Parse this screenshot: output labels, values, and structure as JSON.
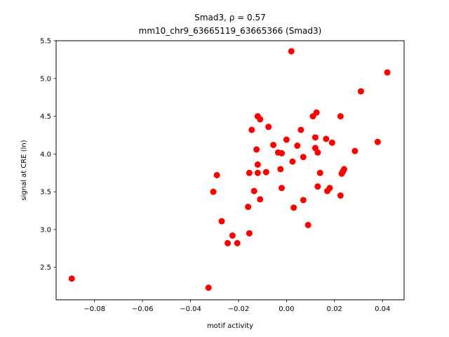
{
  "chart_data": {
    "type": "scatter",
    "title_line1": "Smad3, ρ = 0.57",
    "title_line2": "mm10_chr9_63665119_63665366 (Smad3)",
    "xlabel": "motif activity",
    "ylabel": "signal at CRE (ln)",
    "xlim": [
      -0.096,
      0.049
    ],
    "ylim": [
      2.07,
      5.5
    ],
    "xticks": [
      -0.08,
      -0.06,
      -0.04,
      -0.02,
      0.0,
      0.02,
      0.04
    ],
    "xtick_labels": [
      "−0.08",
      "−0.06",
      "−0.04",
      "−0.02",
      "0.00",
      "0.02",
      "0.04"
    ],
    "yticks": [
      2.5,
      3.0,
      3.5,
      4.0,
      4.5,
      5.0,
      5.5
    ],
    "ytick_labels": [
      "2.5",
      "3.0",
      "3.5",
      "4.0",
      "4.5",
      "5.0",
      "5.5"
    ],
    "marker_color": "#ff0000",
    "grid": false,
    "points": [
      {
        "x": -0.0895,
        "y": 2.35
      },
      {
        "x": -0.0325,
        "y": 2.23
      },
      {
        "x": -0.0305,
        "y": 3.5
      },
      {
        "x": -0.029,
        "y": 3.72
      },
      {
        "x": -0.027,
        "y": 3.11
      },
      {
        "x": -0.0245,
        "y": 2.82
      },
      {
        "x": -0.0225,
        "y": 2.92
      },
      {
        "x": -0.0205,
        "y": 2.82
      },
      {
        "x": -0.016,
        "y": 3.3
      },
      {
        "x": -0.0155,
        "y": 3.75
      },
      {
        "x": -0.0155,
        "y": 2.95
      },
      {
        "x": -0.0145,
        "y": 4.32
      },
      {
        "x": -0.0135,
        "y": 3.51
      },
      {
        "x": -0.0125,
        "y": 4.06
      },
      {
        "x": -0.012,
        "y": 3.86
      },
      {
        "x": -0.012,
        "y": 3.75
      },
      {
        "x": -0.012,
        "y": 4.5
      },
      {
        "x": -0.011,
        "y": 4.46
      },
      {
        "x": -0.011,
        "y": 3.4
      },
      {
        "x": -0.0085,
        "y": 3.76
      },
      {
        "x": -0.0075,
        "y": 4.36
      },
      {
        "x": -0.0055,
        "y": 4.12
      },
      {
        "x": -0.0035,
        "y": 4.02
      },
      {
        "x": -0.0025,
        "y": 3.8
      },
      {
        "x": -0.002,
        "y": 4.01
      },
      {
        "x": -0.002,
        "y": 3.55
      },
      {
        "x": 0.0,
        "y": 4.19
      },
      {
        "x": 0.002,
        "y": 5.36
      },
      {
        "x": 0.0025,
        "y": 3.9
      },
      {
        "x": 0.003,
        "y": 3.29
      },
      {
        "x": 0.0045,
        "y": 4.11
      },
      {
        "x": 0.006,
        "y": 4.32
      },
      {
        "x": 0.007,
        "y": 3.96
      },
      {
        "x": 0.007,
        "y": 3.39
      },
      {
        "x": 0.009,
        "y": 3.06
      },
      {
        "x": 0.011,
        "y": 4.5
      },
      {
        "x": 0.012,
        "y": 4.22
      },
      {
        "x": 0.012,
        "y": 4.08
      },
      {
        "x": 0.0125,
        "y": 4.55
      },
      {
        "x": 0.013,
        "y": 4.02
      },
      {
        "x": 0.013,
        "y": 3.57
      },
      {
        "x": 0.014,
        "y": 3.75
      },
      {
        "x": 0.0165,
        "y": 4.2
      },
      {
        "x": 0.017,
        "y": 3.51
      },
      {
        "x": 0.018,
        "y": 3.55
      },
      {
        "x": 0.019,
        "y": 4.15
      },
      {
        "x": 0.0225,
        "y": 4.5
      },
      {
        "x": 0.0225,
        "y": 3.45
      },
      {
        "x": 0.023,
        "y": 3.74
      },
      {
        "x": 0.0235,
        "y": 3.77
      },
      {
        "x": 0.024,
        "y": 3.8
      },
      {
        "x": 0.0285,
        "y": 4.04
      },
      {
        "x": 0.031,
        "y": 4.83
      },
      {
        "x": 0.038,
        "y": 4.16
      },
      {
        "x": 0.042,
        "y": 5.08
      }
    ]
  }
}
